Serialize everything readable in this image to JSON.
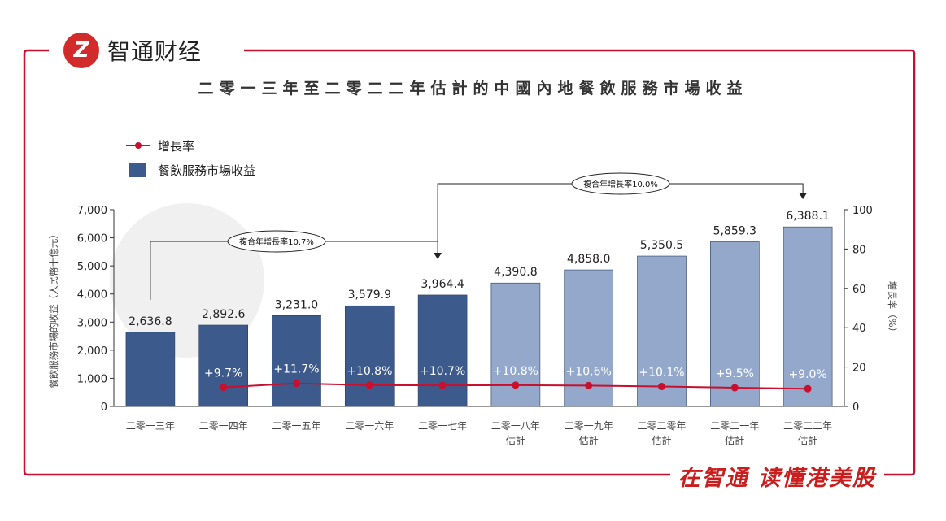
{
  "brand": {
    "logo_glyph": "Z",
    "name": "智通财经"
  },
  "slogan": "在智通  读懂港美股",
  "chart_data": {
    "type": "bar",
    "title": "二零一三年至二零二二年估計的中國內地餐飲服務市場收益",
    "legend": {
      "line_label": "增長率",
      "bar_label": "餐飲服務市場收益",
      "placement": "top-left"
    },
    "categories": [
      [
        "二零一三年"
      ],
      [
        "二零一四年"
      ],
      [
        "二零一五年"
      ],
      [
        "二零一六年"
      ],
      [
        "二零一七年"
      ],
      [
        "二零一八年",
        "估計"
      ],
      [
        "二零一九年",
        "估計"
      ],
      [
        "二零二零年",
        "估計"
      ],
      [
        "二零二一年",
        "估計"
      ],
      [
        "二零二二年",
        "估計"
      ]
    ],
    "values": [
      2636.8,
      2892.6,
      3231.0,
      3579.9,
      3964.4,
      4390.8,
      4858.0,
      5350.5,
      5859.3,
      6388.1
    ],
    "value_labels": [
      "2,636.8",
      "2,892.6",
      "3,231.0",
      "3,579.9",
      "3,964.4",
      "4,390.8",
      "4,858.0",
      "5,350.5",
      "5,859.3",
      "6,388.1"
    ],
    "estimated": [
      false,
      false,
      false,
      false,
      false,
      true,
      true,
      true,
      true,
      true
    ],
    "growth_rates": [
      null,
      9.7,
      11.7,
      10.8,
      10.7,
      10.8,
      10.6,
      10.1,
      9.5,
      9.0
    ],
    "growth_labels": [
      null,
      "+9.7%",
      "+11.7%",
      "+10.8%",
      "+10.7%",
      "+10.8%",
      "+10.6%",
      "+10.1%",
      "+9.5%",
      "+9.0%"
    ],
    "ylabel": "餐飲服務市場的收益（人民幣十億元）",
    "y2label": "增長率（%）",
    "ylim": [
      0,
      7000
    ],
    "yticks": [
      "0",
      "1,000",
      "2,000",
      "3,000",
      "4,000",
      "5,000",
      "6,000",
      "7,000"
    ],
    "y2lim": [
      0,
      100
    ],
    "y2ticks": [
      "0",
      "20",
      "40",
      "60",
      "80",
      "100"
    ],
    "annotations": [
      {
        "text": "複合年增長率10.7%",
        "from_index": 0,
        "to_index": 4
      },
      {
        "text": "複合年增長率10.0%",
        "from_index": 4,
        "to_index": 9
      }
    ],
    "colors": {
      "actual_bar": "#3d5a8c",
      "estimated_bar": "#94a8cc",
      "growth_line": "#c8102e",
      "frame": "#c8102e"
    },
    "grid": false
  }
}
